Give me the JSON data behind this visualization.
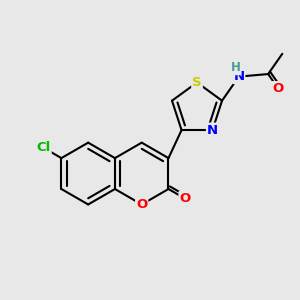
{
  "bg_color": "#e8e8e8",
  "bond_color": "#000000",
  "bond_width": 1.5,
  "atom_colors": {
    "O": "#ff0000",
    "N": "#0000ff",
    "S": "#cccc00",
    "Cl": "#00bb00",
    "H": "#4a9a9a"
  },
  "font_size": 8.5,
  "fig_size": [
    3.0,
    3.0
  ],
  "dpi": 100
}
